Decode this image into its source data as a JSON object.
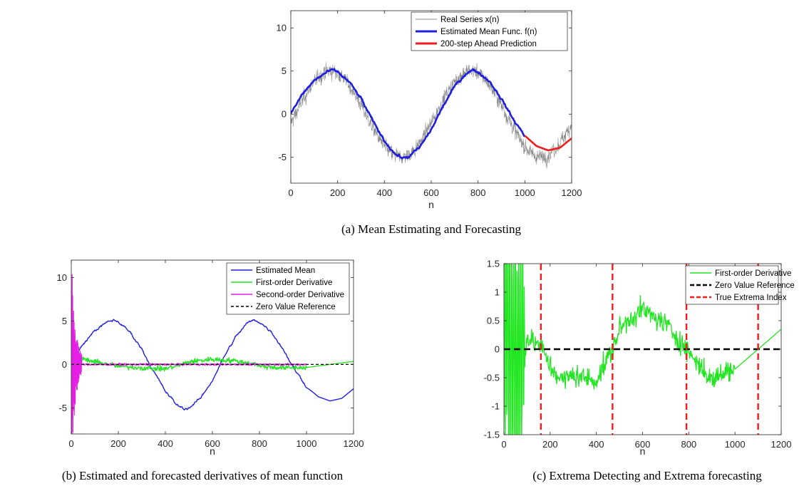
{
  "chart_data": [
    {
      "type": "line",
      "panel": "a",
      "caption": "(a) Mean Estimating and Forecasting",
      "xlabel": "n",
      "ylabel": "",
      "xlim": [
        0,
        1200
      ],
      "ylim": [
        -8,
        12
      ],
      "xticks": [
        0,
        200,
        400,
        600,
        800,
        1000,
        1200
      ],
      "yticks": [
        -5,
        0,
        5,
        10
      ],
      "grid": false,
      "legend_position": "top-right",
      "series": [
        {
          "name": "Real Series x(n)",
          "color": "#8c8c8c",
          "style": "noisy",
          "x_range": [
            0,
            1200
          ],
          "noise_amplitude": 1.4,
          "shape": "5*sin(2*pi*(n-20)/600)"
        },
        {
          "name": "Estimated Mean Func. f(n)",
          "color": "#1f1fe0",
          "x_range": [
            0,
            1000
          ],
          "x": [
            0,
            20,
            50,
            100,
            150,
            180,
            200,
            250,
            300,
            350,
            400,
            450,
            480,
            500,
            550,
            600,
            650,
            700,
            750,
            780,
            800,
            850,
            900,
            950,
            1000
          ],
          "y": [
            0,
            1.0,
            2.3,
            3.9,
            4.8,
            5.1,
            4.9,
            3.7,
            1.8,
            -0.8,
            -3.1,
            -4.7,
            -5.1,
            -5.0,
            -3.9,
            -1.8,
            0.9,
            3.2,
            4.8,
            5.1,
            4.9,
            3.8,
            1.8,
            -0.6,
            -2.5
          ]
        },
        {
          "name": "200-step Ahead Prediction",
          "color": "#ee1c1c",
          "x_range": [
            1000,
            1200
          ],
          "x": [
            1000,
            1050,
            1100,
            1150,
            1200
          ],
          "y": [
            -2.5,
            -3.7,
            -4.2,
            -3.9,
            -2.8
          ]
        }
      ]
    },
    {
      "type": "line",
      "panel": "b",
      "caption": "(b) Estimated and forecasted derivatives of mean function",
      "xlabel": "n",
      "ylabel": "",
      "xlim": [
        0,
        1200
      ],
      "ylim": [
        -8,
        12
      ],
      "xticks": [
        0,
        200,
        400,
        600,
        800,
        1000,
        1200
      ],
      "yticks": [
        -5,
        0,
        5,
        10
      ],
      "grid": false,
      "legend_position": "top-right",
      "series": [
        {
          "name": "Estimated Mean",
          "color": "#1f1fe0",
          "x": [
            0,
            20,
            50,
            100,
            150,
            180,
            200,
            250,
            300,
            350,
            400,
            450,
            480,
            500,
            550,
            600,
            650,
            700,
            750,
            780,
            800,
            850,
            900,
            950,
            1000,
            1050,
            1100,
            1150,
            1200
          ],
          "y": [
            0,
            1.0,
            2.3,
            3.9,
            4.8,
            5.1,
            4.9,
            3.7,
            1.8,
            -0.8,
            -3.1,
            -4.7,
            -5.1,
            -5.0,
            -3.9,
            -1.8,
            0.9,
            3.2,
            4.8,
            5.1,
            4.9,
            3.8,
            1.8,
            -0.6,
            -2.5,
            -3.7,
            -4.2,
            -3.9,
            -2.8
          ]
        },
        {
          "name": "First-order Derivative",
          "color": "#22e622",
          "x": [
            0,
            50,
            100,
            160,
            200,
            300,
            400,
            470,
            500,
            600,
            700,
            790,
            800,
            900,
            1000,
            1100,
            1200
          ],
          "y": [
            0,
            0.6,
            0.3,
            0.0,
            -0.2,
            -0.4,
            -0.5,
            0.0,
            0.3,
            0.6,
            0.4,
            0.0,
            -0.2,
            -0.4,
            -0.35,
            0.0,
            0.35
          ]
        },
        {
          "name": "Second-order Derivative",
          "color": "#e61ee6",
          "x": [
            0,
            20,
            40,
            60,
            100,
            200,
            400,
            600,
            800,
            1000
          ],
          "y": [
            12,
            -8,
            3,
            0.5,
            0.1,
            0.0,
            0.0,
            0.0,
            0.0,
            0.0
          ]
        },
        {
          "name": "Zero Value Reference",
          "color": "#000000",
          "style": "dashed",
          "x": [
            0,
            1200
          ],
          "y": [
            0,
            0
          ]
        }
      ]
    },
    {
      "type": "line",
      "panel": "c",
      "caption": "(c) Extrema Detecting and Extrema forecasting",
      "xlabel": "n",
      "ylabel": "",
      "xlim": [
        0,
        1200
      ],
      "ylim": [
        -1.5,
        1.5
      ],
      "xticks": [
        0,
        200,
        400,
        600,
        800,
        1000,
        1200
      ],
      "yticks": [
        -1.5,
        -1,
        -0.5,
        0,
        0.5,
        1,
        1.5
      ],
      "grid": false,
      "legend_position": "top-right",
      "series": [
        {
          "name": "First-order Derivative",
          "color": "#22e622",
          "x": [
            0,
            30,
            60,
            100,
            160,
            200,
            250,
            300,
            350,
            400,
            470,
            500,
            550,
            600,
            650,
            700,
            750,
            790,
            850,
            900,
            950,
            1000,
            1100,
            1200
          ],
          "y": [
            0,
            1.5,
            -1.5,
            0.2,
            0.05,
            -0.3,
            -0.55,
            -0.45,
            -0.5,
            -0.55,
            0.0,
            0.35,
            0.55,
            0.7,
            0.55,
            0.45,
            0.2,
            0.0,
            -0.3,
            -0.55,
            -0.4,
            -0.35,
            0.0,
            0.35
          ]
        },
        {
          "name": "Zero Value Reference",
          "color": "#000000",
          "style": "dashed",
          "x": [
            0,
            1200
          ],
          "y": [
            0,
            0
          ]
        },
        {
          "name": "True Extrema Index",
          "color": "#ee1c1c",
          "style": "dashed-vertical",
          "x": [
            160,
            470,
            790,
            1100
          ]
        }
      ]
    }
  ]
}
